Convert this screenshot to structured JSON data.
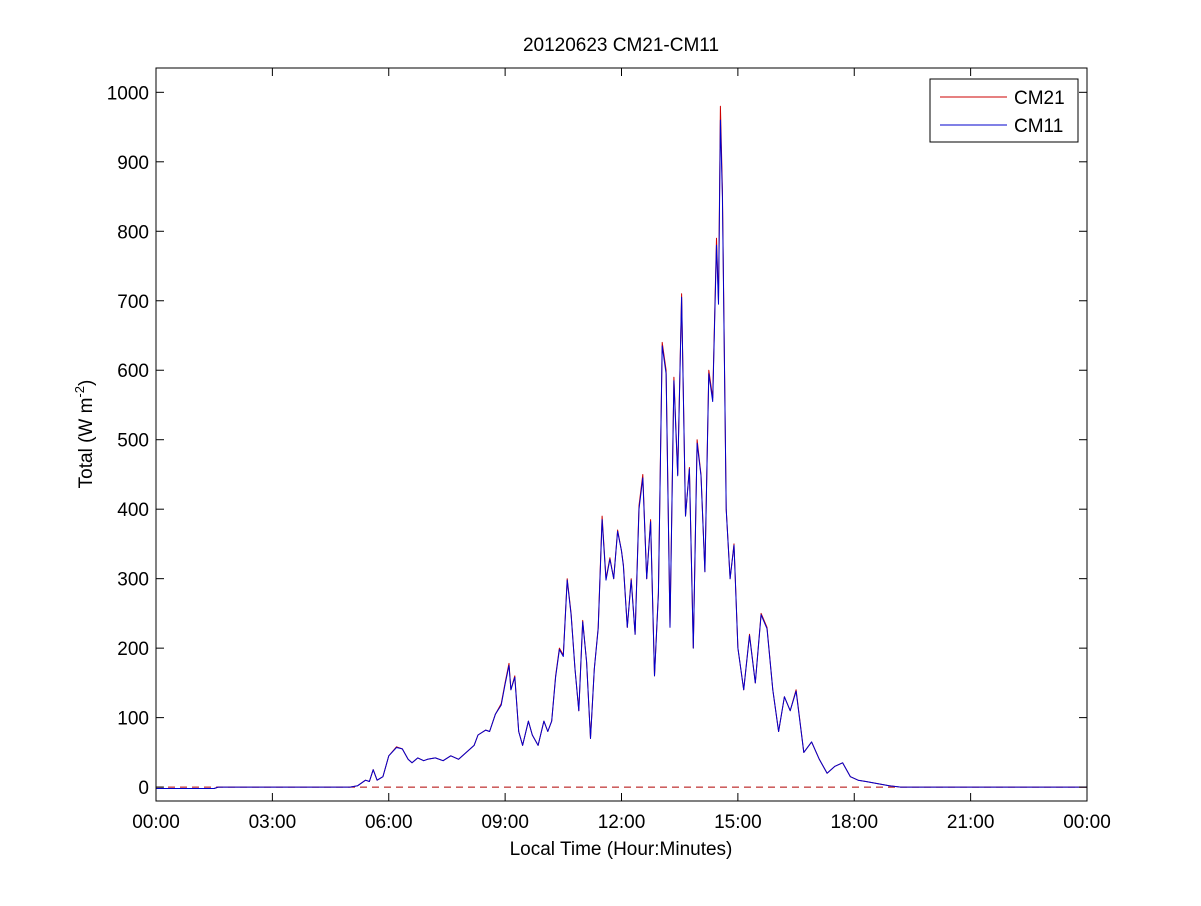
{
  "chart_data": {
    "type": "line",
    "title": "20120623 CM21-CM11",
    "xlabel": "Local Time (Hour:Minutes)",
    "ylabel": "Total (W m",
    "ylabel_sup": "-2",
    "ylabel_close": ")",
    "xlim": [
      0,
      24
    ],
    "ylim": [
      -20,
      1035
    ],
    "x_ticks": [
      0,
      3,
      6,
      9,
      12,
      15,
      18,
      21,
      24
    ],
    "x_tick_labels": [
      "00:00",
      "03:00",
      "06:00",
      "09:00",
      "12:00",
      "15:00",
      "18:00",
      "21:00",
      "00:00"
    ],
    "y_ticks": [
      0,
      100,
      200,
      300,
      400,
      500,
      600,
      700,
      800,
      900,
      1000
    ],
    "y_tick_labels": [
      "0",
      "100",
      "200",
      "300",
      "400",
      "500",
      "600",
      "700",
      "800",
      "900",
      "1000"
    ],
    "grid": false,
    "legend_position": "top-right",
    "zero_line": {
      "y": 0,
      "style": "dashed",
      "color": "#b00000"
    },
    "x_unit": "hours (local time)",
    "series": [
      {
        "name": "CM21",
        "color": "#cc0000",
        "x": [
          0.0,
          1.5,
          1.6,
          5.0,
          5.2,
          5.4,
          5.5,
          5.6,
          5.7,
          5.85,
          6.0,
          6.2,
          6.35,
          6.5,
          6.6,
          6.75,
          6.9,
          7.0,
          7.2,
          7.4,
          7.6,
          7.8,
          8.0,
          8.2,
          8.3,
          8.5,
          8.6,
          8.75,
          8.9,
          9.0,
          9.1,
          9.15,
          9.25,
          9.35,
          9.45,
          9.6,
          9.7,
          9.85,
          10.0,
          10.1,
          10.2,
          10.3,
          10.4,
          10.5,
          10.6,
          10.7,
          10.8,
          10.9,
          11.0,
          11.1,
          11.2,
          11.3,
          11.4,
          11.5,
          11.6,
          11.7,
          11.8,
          11.9,
          12.0,
          12.05,
          12.15,
          12.25,
          12.35,
          12.45,
          12.55,
          12.65,
          12.75,
          12.85,
          12.95,
          13.05,
          13.15,
          13.25,
          13.35,
          13.45,
          13.55,
          13.65,
          13.75,
          13.85,
          13.95,
          14.05,
          14.15,
          14.25,
          14.35,
          14.45,
          14.5,
          14.55,
          14.6,
          14.7,
          14.8,
          14.9,
          15.0,
          15.15,
          15.3,
          15.45,
          15.6,
          15.75,
          15.9,
          16.05,
          16.2,
          16.35,
          16.5,
          16.7,
          16.9,
          17.1,
          17.3,
          17.5,
          17.7,
          17.9,
          18.1,
          18.3,
          18.6,
          18.9,
          19.2,
          19.5,
          24.0
        ],
        "y": [
          -2,
          -2,
          0,
          0,
          2,
          10,
          8,
          25,
          10,
          15,
          45,
          58,
          55,
          40,
          35,
          42,
          38,
          40,
          42,
          38,
          45,
          40,
          50,
          60,
          75,
          82,
          80,
          105,
          120,
          150,
          178,
          140,
          160,
          80,
          60,
          95,
          75,
          60,
          95,
          80,
          95,
          160,
          200,
          190,
          300,
          250,
          170,
          110,
          240,
          180,
          70,
          170,
          230,
          390,
          300,
          330,
          300,
          370,
          340,
          320,
          230,
          300,
          220,
          405,
          450,
          300,
          385,
          160,
          280,
          640,
          600,
          230,
          590,
          450,
          710,
          390,
          460,
          200,
          500,
          450,
          310,
          600,
          560,
          790,
          700,
          980,
          860,
          400,
          300,
          350,
          200,
          140,
          220,
          150,
          250,
          230,
          140,
          80,
          130,
          110,
          140,
          50,
          65,
          40,
          20,
          30,
          35,
          15,
          10,
          8,
          5,
          2,
          0,
          0,
          0
        ]
      },
      {
        "name": "CM11",
        "color": "#0000cc",
        "x": [
          0.0,
          1.5,
          1.6,
          5.0,
          5.2,
          5.4,
          5.5,
          5.6,
          5.7,
          5.85,
          6.0,
          6.2,
          6.35,
          6.5,
          6.6,
          6.75,
          6.9,
          7.0,
          7.2,
          7.4,
          7.6,
          7.8,
          8.0,
          8.2,
          8.3,
          8.5,
          8.6,
          8.75,
          8.9,
          9.0,
          9.1,
          9.15,
          9.25,
          9.35,
          9.45,
          9.6,
          9.7,
          9.85,
          10.0,
          10.1,
          10.2,
          10.3,
          10.4,
          10.5,
          10.6,
          10.7,
          10.8,
          10.9,
          11.0,
          11.1,
          11.2,
          11.3,
          11.4,
          11.5,
          11.6,
          11.7,
          11.8,
          11.9,
          12.0,
          12.05,
          12.15,
          12.25,
          12.35,
          12.45,
          12.55,
          12.65,
          12.75,
          12.85,
          12.95,
          13.05,
          13.15,
          13.25,
          13.35,
          13.45,
          13.55,
          13.65,
          13.75,
          13.85,
          13.95,
          14.05,
          14.15,
          14.25,
          14.35,
          14.45,
          14.5,
          14.55,
          14.6,
          14.7,
          14.8,
          14.9,
          15.0,
          15.15,
          15.3,
          15.45,
          15.6,
          15.75,
          15.9,
          16.05,
          16.2,
          16.35,
          16.5,
          16.7,
          16.9,
          17.1,
          17.3,
          17.5,
          17.7,
          17.9,
          18.1,
          18.3,
          18.6,
          18.9,
          19.2,
          19.5,
          24.0
        ],
        "y": [
          -2,
          -2,
          0,
          0,
          2,
          10,
          8,
          25,
          10,
          15,
          45,
          57,
          55,
          40,
          35,
          42,
          38,
          40,
          42,
          38,
          45,
          40,
          50,
          60,
          75,
          82,
          80,
          105,
          118,
          148,
          175,
          140,
          158,
          80,
          60,
          95,
          75,
          60,
          95,
          80,
          95,
          158,
          198,
          188,
          298,
          248,
          170,
          110,
          238,
          180,
          70,
          170,
          228,
          385,
          298,
          328,
          300,
          368,
          340,
          318,
          230,
          298,
          220,
          400,
          445,
          300,
          382,
          160,
          278,
          635,
          595,
          230,
          585,
          448,
          705,
          390,
          458,
          200,
          495,
          448,
          310,
          595,
          555,
          780,
          695,
          960,
          850,
          400,
          300,
          348,
          200,
          140,
          218,
          150,
          248,
          228,
          140,
          80,
          130,
          110,
          138,
          50,
          65,
          40,
          20,
          30,
          35,
          15,
          10,
          8,
          5,
          2,
          0,
          0,
          0
        ]
      }
    ]
  }
}
